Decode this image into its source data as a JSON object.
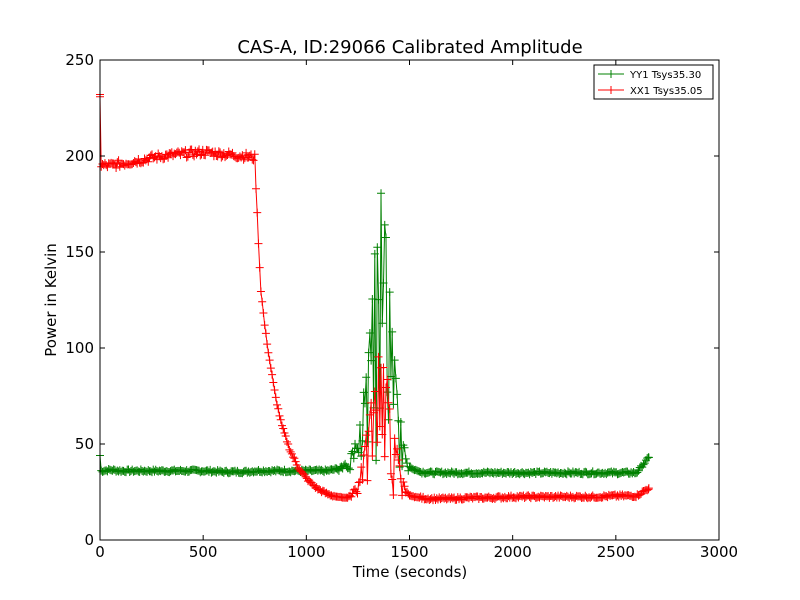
{
  "chart_data": {
    "type": "line",
    "title": "CAS-A, ID:29066 Calibrated Amplitude",
    "xlabel": "Time (seconds)",
    "ylabel": "Power in Kelvin",
    "xlim": [
      0,
      3000
    ],
    "ylim": [
      0,
      250
    ],
    "xticks": [
      "0",
      "500",
      "1000",
      "1500",
      "2000",
      "2500",
      "3000"
    ],
    "yticks": [
      "0",
      "50",
      "100",
      "150",
      "200",
      "250"
    ],
    "grid": false,
    "legend_position": "top-right",
    "marker": "+",
    "series": [
      {
        "name": "YY1 Tsys35.30",
        "color": "#008000",
        "points": [
          [
            0,
            44
          ],
          [
            5,
            36
          ],
          [
            50,
            36.5
          ],
          [
            100,
            36
          ],
          [
            200,
            36
          ],
          [
            300,
            36
          ],
          [
            400,
            36
          ],
          [
            500,
            36
          ],
          [
            600,
            35.5
          ],
          [
            700,
            35.5
          ],
          [
            760,
            36
          ],
          [
            800,
            36
          ],
          [
            900,
            36
          ],
          [
            1000,
            36
          ],
          [
            1100,
            36
          ],
          [
            1150,
            37
          ],
          [
            1200,
            40
          ],
          [
            1250,
            52
          ],
          [
            1300,
            95
          ],
          [
            1340,
            140
          ],
          [
            1360,
            158
          ],
          [
            1380,
            150
          ],
          [
            1400,
            125
          ],
          [
            1420,
            95
          ],
          [
            1450,
            62
          ],
          [
            1480,
            45
          ],
          [
            1500,
            38
          ],
          [
            1550,
            35.5
          ],
          [
            1600,
            35
          ],
          [
            1700,
            35
          ],
          [
            1800,
            35
          ],
          [
            1900,
            35
          ],
          [
            2000,
            35
          ],
          [
            2100,
            35
          ],
          [
            2200,
            35
          ],
          [
            2300,
            35
          ],
          [
            2400,
            35
          ],
          [
            2500,
            35
          ],
          [
            2600,
            35
          ],
          [
            2660,
            43
          ]
        ]
      },
      {
        "name": "XX1 Tsys35.05",
        "color": "#ff0000",
        "points": [
          [
            0,
            232
          ],
          [
            5,
            195
          ],
          [
            50,
            195
          ],
          [
            100,
            196
          ],
          [
            200,
            198
          ],
          [
            300,
            200
          ],
          [
            400,
            201
          ],
          [
            500,
            202
          ],
          [
            600,
            201
          ],
          [
            700,
            200
          ],
          [
            750,
            199
          ],
          [
            760,
            175
          ],
          [
            770,
            150
          ],
          [
            780,
            130
          ],
          [
            800,
            110
          ],
          [
            820,
            95
          ],
          [
            850,
            75
          ],
          [
            880,
            60
          ],
          [
            920,
            47
          ],
          [
            960,
            38
          ],
          [
            1000,
            32
          ],
          [
            1050,
            27
          ],
          [
            1100,
            24
          ],
          [
            1150,
            22.5
          ],
          [
            1200,
            22
          ],
          [
            1250,
            28
          ],
          [
            1300,
            55
          ],
          [
            1340,
            80
          ],
          [
            1360,
            87
          ],
          [
            1380,
            82
          ],
          [
            1400,
            70
          ],
          [
            1420,
            55
          ],
          [
            1450,
            38
          ],
          [
            1480,
            26
          ],
          [
            1500,
            23
          ],
          [
            1550,
            22
          ],
          [
            1600,
            21.5
          ],
          [
            1700,
            21.5
          ],
          [
            1800,
            22
          ],
          [
            1900,
            22
          ],
          [
            2000,
            22.5
          ],
          [
            2100,
            22.5
          ],
          [
            2200,
            22.5
          ],
          [
            2300,
            22.5
          ],
          [
            2400,
            22.5
          ],
          [
            2500,
            23
          ],
          [
            2600,
            23
          ],
          [
            2660,
            27
          ]
        ]
      }
    ]
  }
}
